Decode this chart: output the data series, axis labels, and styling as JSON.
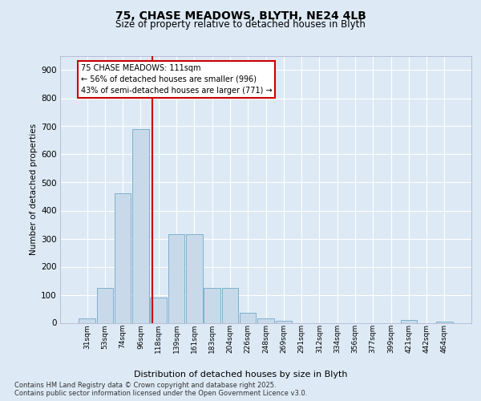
{
  "title_line1": "75, CHASE MEADOWS, BLYTH, NE24 4LB",
  "title_line2": "Size of property relative to detached houses in Blyth",
  "xlabel": "Distribution of detached houses by size in Blyth",
  "ylabel": "Number of detached properties",
  "bar_labels": [
    "31sqm",
    "53sqm",
    "74sqm",
    "96sqm",
    "118sqm",
    "139sqm",
    "161sqm",
    "183sqm",
    "204sqm",
    "226sqm",
    "248sqm",
    "269sqm",
    "291sqm",
    "312sqm",
    "334sqm",
    "356sqm",
    "377sqm",
    "399sqm",
    "421sqm",
    "442sqm",
    "464sqm"
  ],
  "bar_values": [
    15,
    125,
    460,
    690,
    90,
    315,
    315,
    125,
    125,
    35,
    15,
    7,
    0,
    0,
    0,
    0,
    0,
    0,
    10,
    0,
    5
  ],
  "bar_color": "#c8daea",
  "bar_edge_color": "#6fa8c8",
  "vline_color": "#cc0000",
  "annotation_text": "75 CHASE MEADOWS: 111sqm\n← 56% of detached houses are smaller (996)\n43% of semi-detached houses are larger (771) →",
  "annotation_box_color": "#ffffff",
  "annotation_box_edge": "#cc0000",
  "bg_color": "#ddeaf5",
  "plot_bg_color": "#ddeaf5",
  "grid_color": "#ffffff",
  "footer_line1": "Contains HM Land Registry data © Crown copyright and database right 2025.",
  "footer_line2": "Contains public sector information licensed under the Open Government Licence v3.0.",
  "ylim_max": 950,
  "yticks": [
    0,
    100,
    200,
    300,
    400,
    500,
    600,
    700,
    800,
    900
  ]
}
